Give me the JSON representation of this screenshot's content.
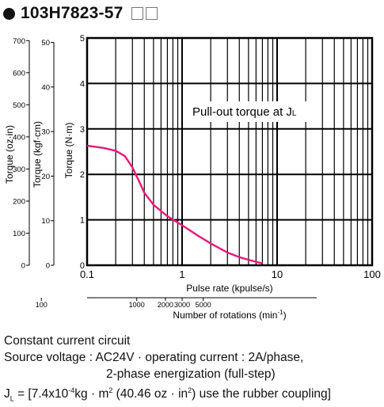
{
  "title": {
    "model": "103H7823-57"
  },
  "chart_data": {
    "type": "line",
    "title": "",
    "annotation": "Pull-out torque at J",
    "annotation_subscript": "L",
    "xlabel": "Pulse rate (kpulse/s)",
    "xscale": "log",
    "xlim": [
      0.1,
      100
    ],
    "x_ticks": [
      {
        "v": 0.1,
        "label": "0.1"
      },
      {
        "v": 1,
        "label": "1"
      },
      {
        "v": 10,
        "label": "10"
      },
      {
        "v": 100,
        "label": "100"
      }
    ],
    "ylabel": "Torque (N·m)",
    "ylim": [
      0,
      5
    ],
    "y_ticks": [
      "0",
      "1",
      "2",
      "3",
      "4",
      "5"
    ],
    "grid": true,
    "secondary_axes": [
      {
        "label": "Torque (oz·in)",
        "max": 700,
        "ticks": [
          "0",
          "100",
          "200",
          "300",
          "400",
          "500",
          "600",
          "700"
        ]
      },
      {
        "label": "Torque (kgf·cm)",
        "max": 50,
        "ticks": [
          "0",
          "10",
          "20",
          "30",
          "40",
          "50"
        ]
      }
    ],
    "rotation_axis": {
      "label": "Number of rotations (min",
      "label_sup": "-1",
      "label_end": ")",
      "ticks": [
        {
          "v": 0.033,
          "label": "100"
        },
        {
          "v": 0.333,
          "label": "1000"
        },
        {
          "v": 0.667,
          "label": "2000"
        },
        {
          "v": 1,
          "label": "3000"
        },
        {
          "v": 1.667,
          "label": "5000"
        }
      ]
    },
    "series": [
      {
        "color": "#e8197a",
        "x": [
          0.1,
          0.15,
          0.2,
          0.25,
          0.3,
          0.35,
          0.4,
          0.5,
          0.7,
          1.0,
          1.5,
          2.0,
          3.0,
          4.0,
          5.0,
          7.0
        ],
        "y": [
          2.63,
          2.58,
          2.52,
          2.4,
          2.15,
          1.86,
          1.6,
          1.33,
          1.08,
          0.88,
          0.64,
          0.48,
          0.28,
          0.18,
          0.12,
          0.04
        ]
      }
    ]
  },
  "notes": {
    "line1": "Constant current circuit",
    "line2": "Source voltage : AC24V · operating current : 2A/phase,",
    "line3": "2-phase energization (full-step)",
    "line4_a": "J",
    "line4_sub": "L",
    "line4_b": " = [7.4x10",
    "line4_sup": "-4",
    "line4_c": "kg · m",
    "line4_sup2": "2",
    "line4_d": " (40.46 oz · in",
    "line4_sup3": "2",
    "line4_e": ")  use the rubber coupling]"
  }
}
